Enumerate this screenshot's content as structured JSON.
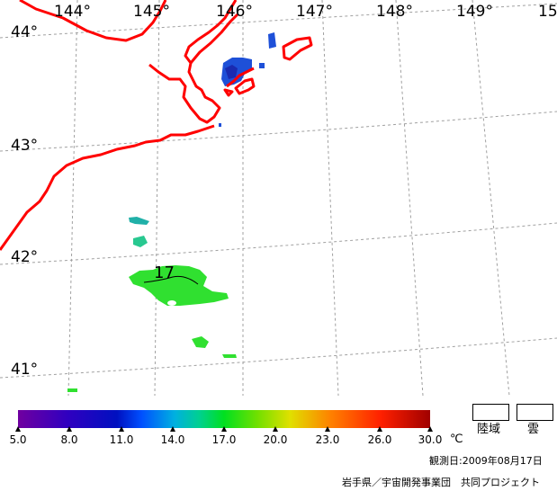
{
  "map": {
    "longitude_labels": [
      "144°",
      "145°",
      "146°",
      "147°",
      "148°",
      "149°",
      "15"
    ],
    "latitude_labels": [
      "44°",
      "43°",
      "42°",
      "41°"
    ],
    "isotherm_label": "17",
    "colors": {
      "coastline": "#ff0000",
      "grid": "#a0a0a0",
      "sst_cold": "#1e50d8",
      "sst_mid": "#20b0a8",
      "sst_warm": "#30e030"
    }
  },
  "colorbar": {
    "tick_labels": [
      "5.0",
      "8.0",
      "11.0",
      "14.0",
      "17.0",
      "20.0",
      "23.0",
      "26.0",
      "30.0"
    ],
    "unit": "℃",
    "range": [
      5.0,
      30.0
    ]
  },
  "legend": {
    "land_label": "陸域",
    "cloud_label": "雲"
  },
  "footer": {
    "observation_date": "観測日:2009年08月17日",
    "credit": "岩手県／宇宙開発事業団　共同プロジェクト"
  }
}
